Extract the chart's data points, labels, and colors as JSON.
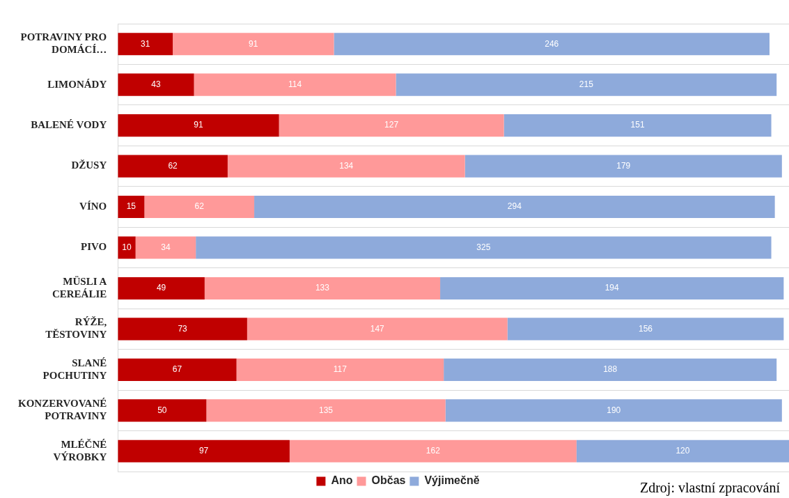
{
  "chart_data": {
    "type": "bar",
    "orientation": "horizontal",
    "stacked": true,
    "data_labels": true,
    "grid": "y",
    "legend": "bottom",
    "categories": [
      "POTRAVINY PRO DOMÁCÍ…",
      "LIMONÁDY",
      "BALENÉ VODY",
      "DŽUSY",
      "VÍNO",
      "PIVO",
      "MÜSLI A CEREÁLIE",
      "RÝŽE, TĚSTOVINY",
      "SLANÉ POCHUTINY",
      "KONZERVOVANÉ POTRAVINY",
      "MLÉČNÉ VÝROBKY"
    ],
    "series": [
      {
        "name": "Ano",
        "color": "#c00000",
        "values": [
          31,
          43,
          91,
          62,
          15,
          10,
          49,
          73,
          67,
          50,
          97
        ]
      },
      {
        "name": "Občas",
        "color": "#ff9999",
        "values": [
          91,
          114,
          127,
          134,
          62,
          34,
          133,
          147,
          117,
          135,
          162
        ]
      },
      {
        "name": "Výjimečně",
        "color": "#8eaadb",
        "values": [
          246,
          215,
          151,
          179,
          294,
          325,
          194,
          156,
          188,
          190,
          120
        ]
      }
    ],
    "annotations": [
      "Zdroj: vlastní zpracování"
    ]
  }
}
